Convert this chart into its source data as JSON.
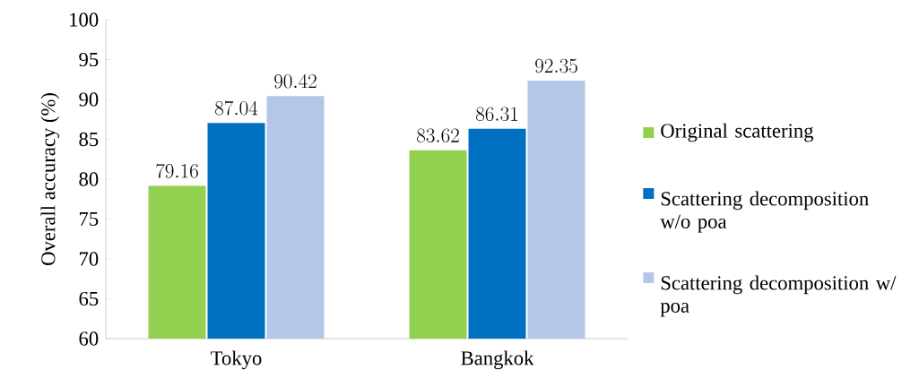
{
  "chart_data": {
    "type": "bar",
    "ylabel": "Overall accuracy (%)",
    "categories": [
      "Tokyo",
      "Bangkok"
    ],
    "series": [
      {
        "name": "Original scattering",
        "color": "#92d050",
        "values": [
          79.16,
          83.62
        ]
      },
      {
        "name": "Scattering decomposition w/o poa",
        "color": "#0070c0",
        "values": [
          87.04,
          86.31
        ]
      },
      {
        "name": "Scattering decomposition w/ poa",
        "color": "#b4c7e7",
        "values": [
          90.42,
          92.35
        ]
      }
    ],
    "ylim": [
      60,
      100
    ],
    "yticks": [
      60,
      65,
      70,
      75,
      80,
      85,
      90,
      95,
      100
    ],
    "data_labels": true,
    "legend": "right",
    "grid": false
  }
}
